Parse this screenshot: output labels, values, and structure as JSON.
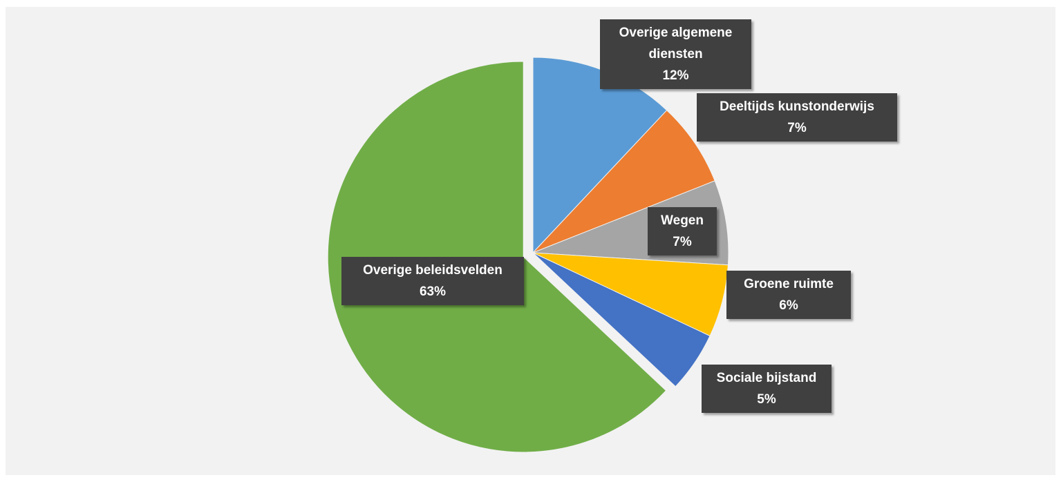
{
  "chart_data": {
    "type": "pie",
    "categories": [
      "Overige algemene diensten",
      "Deeltijds kunstonderwijs",
      "Wegen",
      "Groene ruimte",
      "Sociale bijstand",
      "Overige beleidsvelden"
    ],
    "values": [
      12,
      7,
      7,
      6,
      5,
      63
    ],
    "value_labels": [
      "12%",
      "7%",
      "7%",
      "6%",
      "5%",
      "63%"
    ],
    "colors": [
      "#5b9bd5",
      "#ed7d31",
      "#a5a5a5",
      "#ffc000",
      "#4472c4",
      "#70ad47"
    ],
    "exploded": [
      "Overige beleidsvelden"
    ]
  }
}
